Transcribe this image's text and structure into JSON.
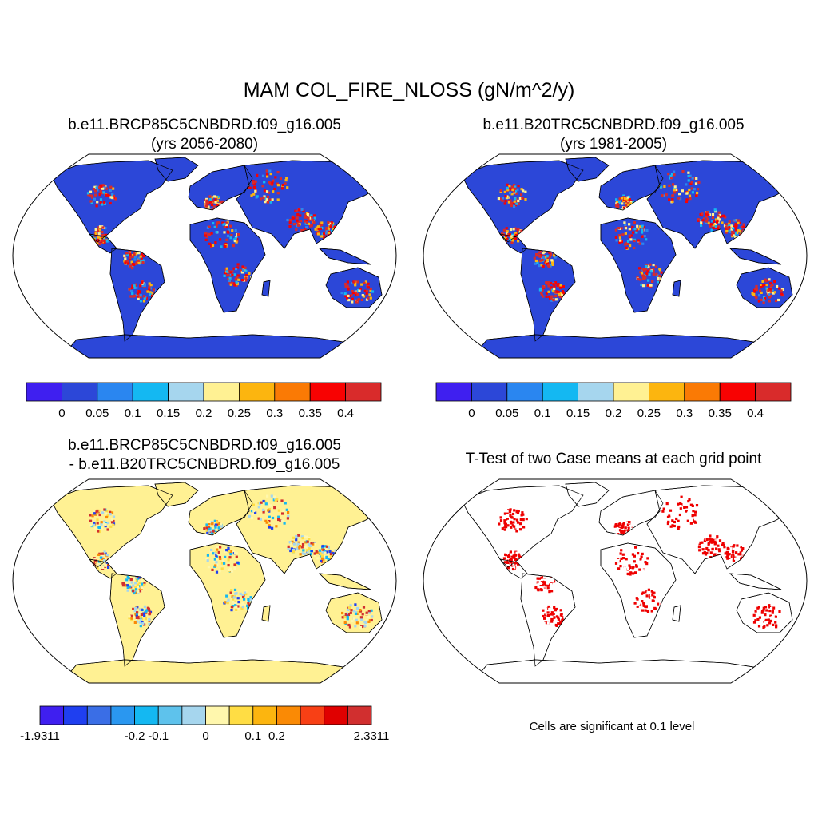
{
  "chart_data": [
    {
      "type": "heatmap",
      "title": "MAM COL_FIRE_NLOSS (gN/m^2/y)",
      "panels": [
        {
          "id": "future",
          "title_line1": "b.e11.BRCP85C5CNBDRD.f09_g16.005",
          "title_line2": "(yrs 2056-2080)",
          "kind": "field"
        },
        {
          "id": "historical",
          "title_line1": "b.e11.B20TRC5CNBDRD.f09_g16.005",
          "title_line2": "(yrs 1981-2005)",
          "kind": "field"
        },
        {
          "id": "difference",
          "title_line1": "b.e11.BRCP85C5CNBDRD.f09_g16.005",
          "title_line2": "- b.e11.B20TRC5CNBDRD.f09_g16.005",
          "kind": "diff"
        },
        {
          "id": "ttest",
          "title_line1": "T-Test of two Case means at each grid point",
          "title_line2": "",
          "note": "Cells are significant at 0.1 level",
          "kind": "sig"
        }
      ],
      "colorbars": [
        {
          "id": "field-colorbar-1",
          "colors": [
            "#3f1ff0",
            "#2c47d8",
            "#2a86f0",
            "#14b8f2",
            "#a6d6ee",
            "#fff193",
            "#fcb50f",
            "#fa7a05",
            "#f80202",
            "#d92b2b"
          ],
          "labels": [
            "0",
            "0.05",
            "0.1",
            "0.15",
            "0.2",
            "0.25",
            "0.3",
            "0.35",
            "0.4"
          ]
        },
        {
          "id": "field-colorbar-2",
          "colors": [
            "#3f1ff0",
            "#2c47d8",
            "#2a86f0",
            "#14b8f2",
            "#a6d6ee",
            "#fff193",
            "#fcb50f",
            "#fa7a05",
            "#f80202",
            "#d92b2b"
          ],
          "labels": [
            "0",
            "0.05",
            "0.1",
            "0.15",
            "0.2",
            "0.25",
            "0.3",
            "0.35",
            "0.4"
          ]
        },
        {
          "id": "diff-colorbar",
          "colors": [
            "#3f1ff0",
            "#1f3ff0",
            "#3a6ee6",
            "#2a97f0",
            "#14b8f2",
            "#5ec2ec",
            "#a6d6ee",
            "#fff7ad",
            "#ffdd44",
            "#fcb50f",
            "#fa8a05",
            "#f84015",
            "#e00000",
            "#d12f2f"
          ],
          "labels": [
            "-1.9311",
            "-0.2",
            "-0.1",
            "0",
            "0.1",
            "0.2",
            "2.3311"
          ]
        }
      ],
      "palette": {
        "ocean": "#ffffff",
        "antarctica_field": "#2c47d8",
        "antarctica_diff": "#fff193",
        "coast": "#000000"
      }
    }
  ]
}
